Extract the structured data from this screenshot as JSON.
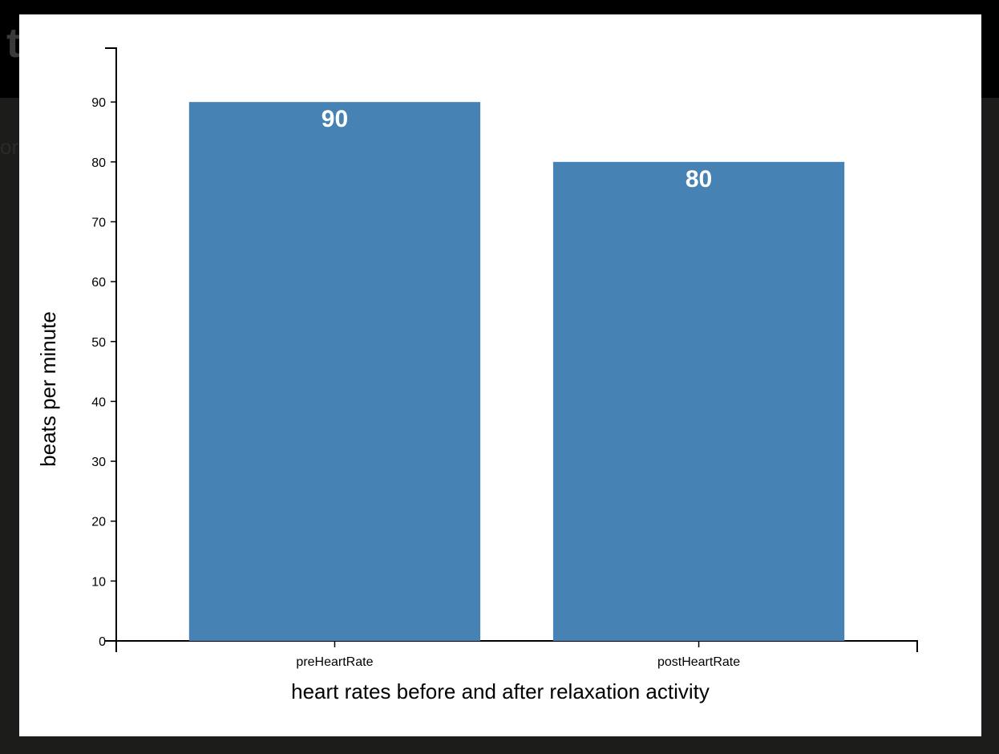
{
  "background": {
    "title_fragment": "t",
    "text_fragment": "or"
  },
  "chart_data": {
    "type": "bar",
    "categories": [
      "preHeartRate",
      "postHeartRate"
    ],
    "values": [
      90,
      80
    ],
    "value_labels": [
      "90",
      "80"
    ],
    "xlabel": "heart rates before and after relaxation activity",
    "ylabel": "beats per minute",
    "yticks": [
      "0",
      "10",
      "20",
      "30",
      "40",
      "50",
      "60",
      "70",
      "80",
      "90"
    ],
    "ylim": [
      0,
      99
    ],
    "grid": false,
    "bar_color": "#4682b4",
    "bar_label_color": "#ffffff"
  }
}
